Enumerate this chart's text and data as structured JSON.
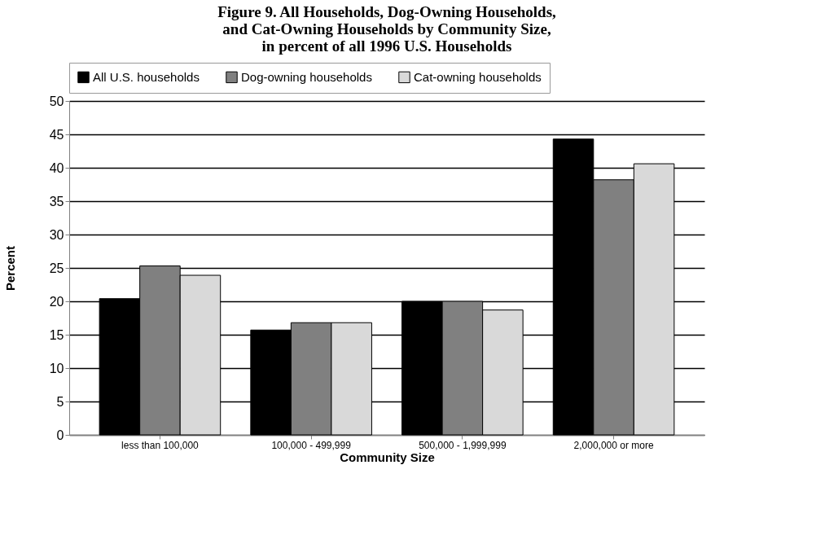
{
  "chart_data": {
    "type": "bar",
    "title": [
      "Figure 9.  All Households, Dog-Owning Households,",
      "and Cat-Owning Households by Community Size,",
      "in percent of all 1996 U.S. Households"
    ],
    "xlabel": "Community Size",
    "ylabel": "Percent",
    "categories": [
      "less than 100,000",
      "100,000 - 499,999",
      "500,000 - 1,999,999",
      "2,000,000 or more"
    ],
    "series": [
      {
        "name": "All U.S. households",
        "color": "#000000",
        "values": [
          20.4,
          15.7,
          20,
          44.3
        ]
      },
      {
        "name": "Dog-owning households",
        "color": "#808080",
        "values": [
          25.3,
          16.8,
          20,
          38.2
        ]
      },
      {
        "name": "Cat-owning households",
        "color": "#d9d9d9",
        "values": [
          23.9,
          16.8,
          18.7,
          40.6
        ]
      }
    ],
    "ylim": [
      0,
      50
    ],
    "yticks": [
      0,
      5,
      10,
      15,
      20,
      25,
      30,
      35,
      40,
      45,
      50
    ],
    "grid": "y",
    "legend": "top"
  }
}
